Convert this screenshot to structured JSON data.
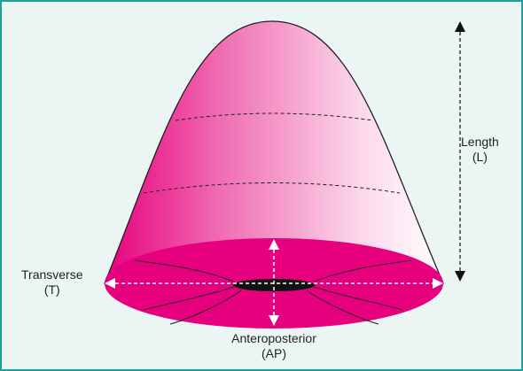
{
  "labels": {
    "length": {
      "name": "Length",
      "abbr": "(L)"
    },
    "transverse": {
      "name": "Transverse",
      "abbr": "(T)"
    },
    "anteroposterior": {
      "name": "Anteroposterior",
      "abbr": "(AP)"
    }
  },
  "colors": {
    "border": "#1aa39a",
    "background": "#eaf5f4",
    "cone_dark": "#e6007e",
    "cone_light": "#ffffff",
    "base": "#e6007e",
    "aperture": "#111111",
    "arrow_white": "#ffffff",
    "arrow_black": "#111111"
  }
}
